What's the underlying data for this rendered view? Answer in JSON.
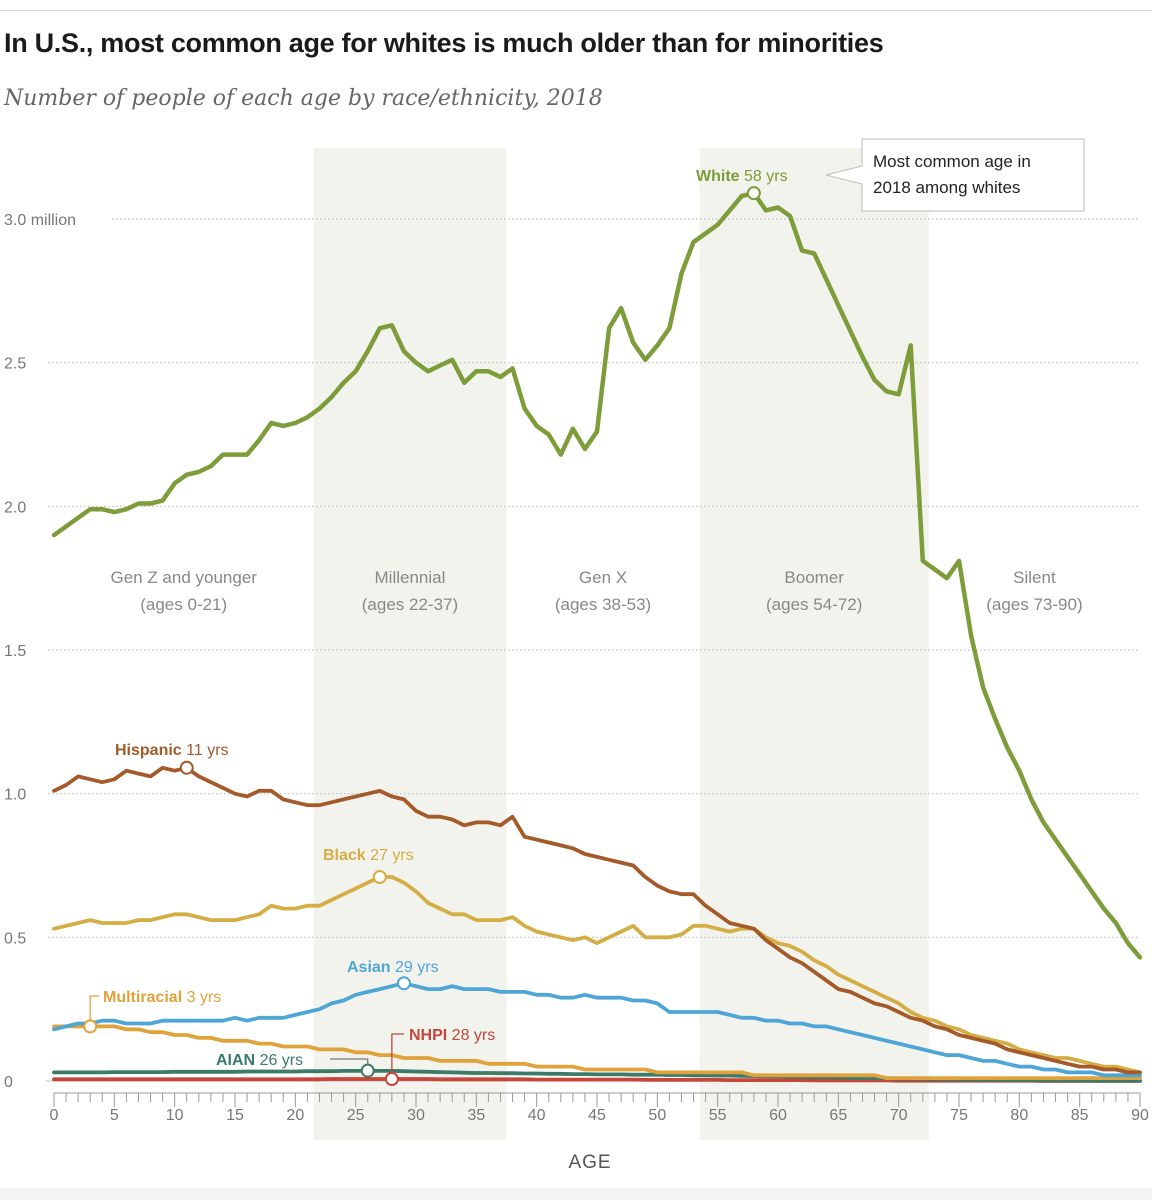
{
  "chart_data": {
    "type": "line",
    "title": "In U.S., most common age for whites is much older than for minorities",
    "subtitle": "Number of people of each age by race/ethnicity, 2018",
    "xlabel": "AGE",
    "ylabel": "",
    "xlim": [
      0,
      90
    ],
    "ylim": [
      0,
      3.2
    ],
    "grid": true,
    "x_ticks": [
      0,
      5,
      10,
      15,
      20,
      25,
      30,
      35,
      40,
      45,
      50,
      55,
      60,
      65,
      70,
      75,
      80,
      85,
      90
    ],
    "y_ticks": [
      {
        "value": 0,
        "label": "0"
      },
      {
        "value": 0.5,
        "label": "0.5"
      },
      {
        "value": 1.0,
        "label": "1.0"
      },
      {
        "value": 1.5,
        "label": "1.5"
      },
      {
        "value": 2.0,
        "label": "2.0"
      },
      {
        "value": 2.5,
        "label": "2.5"
      },
      {
        "value": 3.0,
        "label": "3.0 million"
      }
    ],
    "generations": [
      {
        "name": "Gen Z and younger",
        "range": "(ages 0-21)",
        "start": 0,
        "end": 21.5,
        "shaded": false
      },
      {
        "name": "Millennial",
        "range": "(ages 22-37)",
        "start": 21.5,
        "end": 37.5,
        "shaded": true
      },
      {
        "name": "Gen X",
        "range": "(ages 38-53)",
        "start": 37.5,
        "end": 53.5,
        "shaded": false
      },
      {
        "name": "Boomer",
        "range": "(ages 54-72)",
        "start": 53.5,
        "end": 72.5,
        "shaded": true
      },
      {
        "name": "Silent",
        "range": "(ages 73-90)",
        "start": 72.5,
        "end": 90,
        "shaded": false
      }
    ],
    "x": [
      0,
      1,
      2,
      3,
      4,
      5,
      6,
      7,
      8,
      9,
      10,
      11,
      12,
      13,
      14,
      15,
      16,
      17,
      18,
      19,
      20,
      21,
      22,
      23,
      24,
      25,
      26,
      27,
      28,
      29,
      30,
      31,
      32,
      33,
      34,
      35,
      36,
      37,
      38,
      39,
      40,
      41,
      42,
      43,
      44,
      45,
      46,
      47,
      48,
      49,
      50,
      51,
      52,
      53,
      54,
      55,
      56,
      57,
      58,
      59,
      60,
      61,
      62,
      63,
      64,
      65,
      66,
      67,
      68,
      69,
      70,
      71,
      72,
      73,
      74,
      75,
      76,
      77,
      78,
      79,
      80,
      81,
      82,
      83,
      84,
      85,
      86,
      87,
      88,
      89,
      90
    ],
    "series": [
      {
        "name": "White",
        "peak_label": "58 yrs",
        "peak_age": 58,
        "color": "#7d9c3a",
        "values": [
          1.9,
          1.93,
          1.96,
          1.99,
          1.99,
          1.98,
          1.99,
          2.01,
          2.01,
          2.02,
          2.08,
          2.11,
          2.12,
          2.14,
          2.18,
          2.18,
          2.18,
          2.23,
          2.29,
          2.28,
          2.29,
          2.31,
          2.34,
          2.38,
          2.43,
          2.47,
          2.54,
          2.62,
          2.63,
          2.54,
          2.5,
          2.47,
          2.49,
          2.51,
          2.43,
          2.47,
          2.47,
          2.45,
          2.48,
          2.34,
          2.28,
          2.25,
          2.18,
          2.27,
          2.2,
          2.26,
          2.62,
          2.69,
          2.57,
          2.51,
          2.56,
          2.62,
          2.81,
          2.92,
          2.95,
          2.98,
          3.03,
          3.08,
          3.09,
          3.03,
          3.04,
          3.01,
          2.89,
          2.88,
          2.79,
          2.7,
          2.61,
          2.52,
          2.44,
          2.4,
          2.39,
          2.56,
          1.81,
          1.78,
          1.75,
          1.81,
          1.55,
          1.37,
          1.26,
          1.16,
          1.08,
          0.98,
          0.9,
          0.84,
          0.78,
          0.72,
          0.66,
          0.6,
          0.55,
          0.48,
          0.43
        ]
      },
      {
        "name": "Hispanic",
        "peak_label": "11 yrs",
        "peak_age": 11,
        "color": "#a55a2a",
        "values": [
          1.01,
          1.03,
          1.06,
          1.05,
          1.04,
          1.05,
          1.08,
          1.07,
          1.06,
          1.09,
          1.08,
          1.09,
          1.06,
          1.04,
          1.02,
          1.0,
          0.99,
          1.01,
          1.01,
          0.98,
          0.97,
          0.96,
          0.96,
          0.97,
          0.98,
          0.99,
          1.0,
          1.01,
          0.99,
          0.98,
          0.94,
          0.92,
          0.92,
          0.91,
          0.89,
          0.9,
          0.9,
          0.89,
          0.92,
          0.85,
          0.84,
          0.83,
          0.82,
          0.81,
          0.79,
          0.78,
          0.77,
          0.76,
          0.75,
          0.71,
          0.68,
          0.66,
          0.65,
          0.65,
          0.61,
          0.58,
          0.55,
          0.54,
          0.53,
          0.49,
          0.46,
          0.43,
          0.41,
          0.38,
          0.35,
          0.32,
          0.31,
          0.29,
          0.27,
          0.26,
          0.24,
          0.22,
          0.21,
          0.19,
          0.18,
          0.16,
          0.15,
          0.14,
          0.13,
          0.11,
          0.1,
          0.09,
          0.08,
          0.07,
          0.06,
          0.05,
          0.05,
          0.04,
          0.04,
          0.03,
          0.03
        ]
      },
      {
        "name": "Black",
        "peak_label": "27 yrs",
        "peak_age": 27,
        "color": "#d4ae45",
        "values": [
          0.53,
          0.54,
          0.55,
          0.56,
          0.55,
          0.55,
          0.55,
          0.56,
          0.56,
          0.57,
          0.58,
          0.58,
          0.57,
          0.56,
          0.56,
          0.56,
          0.57,
          0.58,
          0.61,
          0.6,
          0.6,
          0.61,
          0.61,
          0.63,
          0.65,
          0.67,
          0.69,
          0.71,
          0.71,
          0.69,
          0.66,
          0.62,
          0.6,
          0.58,
          0.58,
          0.56,
          0.56,
          0.56,
          0.57,
          0.54,
          0.52,
          0.51,
          0.5,
          0.49,
          0.5,
          0.48,
          0.5,
          0.52,
          0.54,
          0.5,
          0.5,
          0.5,
          0.51,
          0.54,
          0.54,
          0.53,
          0.52,
          0.53,
          0.53,
          0.5,
          0.48,
          0.47,
          0.45,
          0.42,
          0.4,
          0.37,
          0.35,
          0.33,
          0.31,
          0.29,
          0.27,
          0.24,
          0.22,
          0.21,
          0.19,
          0.18,
          0.16,
          0.15,
          0.14,
          0.13,
          0.11,
          0.1,
          0.09,
          0.08,
          0.08,
          0.07,
          0.06,
          0.05,
          0.05,
          0.04,
          0.03
        ]
      },
      {
        "name": "Asian",
        "peak_label": "29 yrs",
        "peak_age": 29,
        "color": "#4ea6d6",
        "values": [
          0.18,
          0.19,
          0.2,
          0.2,
          0.21,
          0.21,
          0.2,
          0.2,
          0.2,
          0.21,
          0.21,
          0.21,
          0.21,
          0.21,
          0.21,
          0.22,
          0.21,
          0.22,
          0.22,
          0.22,
          0.23,
          0.24,
          0.25,
          0.27,
          0.28,
          0.3,
          0.31,
          0.32,
          0.33,
          0.34,
          0.33,
          0.32,
          0.32,
          0.33,
          0.32,
          0.32,
          0.32,
          0.31,
          0.31,
          0.31,
          0.3,
          0.3,
          0.29,
          0.29,
          0.3,
          0.29,
          0.29,
          0.29,
          0.28,
          0.28,
          0.27,
          0.24,
          0.24,
          0.24,
          0.24,
          0.24,
          0.23,
          0.22,
          0.22,
          0.21,
          0.21,
          0.2,
          0.2,
          0.19,
          0.19,
          0.18,
          0.17,
          0.16,
          0.15,
          0.14,
          0.13,
          0.12,
          0.11,
          0.1,
          0.09,
          0.09,
          0.08,
          0.07,
          0.07,
          0.06,
          0.05,
          0.05,
          0.04,
          0.04,
          0.03,
          0.03,
          0.03,
          0.02,
          0.02,
          0.02,
          0.02
        ]
      },
      {
        "name": "Multiracial",
        "peak_label": "3 yrs",
        "peak_age": 3,
        "color": "#e0a33c",
        "values": [
          0.19,
          0.19,
          0.19,
          0.19,
          0.19,
          0.19,
          0.18,
          0.18,
          0.17,
          0.17,
          0.16,
          0.16,
          0.15,
          0.15,
          0.14,
          0.14,
          0.14,
          0.13,
          0.13,
          0.12,
          0.12,
          0.12,
          0.11,
          0.11,
          0.11,
          0.1,
          0.1,
          0.09,
          0.09,
          0.08,
          0.08,
          0.08,
          0.07,
          0.07,
          0.07,
          0.07,
          0.06,
          0.06,
          0.06,
          0.06,
          0.05,
          0.05,
          0.05,
          0.05,
          0.04,
          0.04,
          0.04,
          0.04,
          0.04,
          0.04,
          0.03,
          0.03,
          0.03,
          0.03,
          0.03,
          0.03,
          0.03,
          0.03,
          0.02,
          0.02,
          0.02,
          0.02,
          0.02,
          0.02,
          0.02,
          0.02,
          0.02,
          0.02,
          0.02,
          0.01,
          0.01,
          0.01,
          0.01,
          0.01,
          0.01,
          0.01,
          0.01,
          0.01,
          0.01,
          0.01,
          0.01,
          0.01,
          0.01,
          0.01,
          0.01,
          0.01,
          0.01,
          0.01,
          0.01,
          0.01,
          0.01
        ]
      },
      {
        "name": "AIAN",
        "peak_label": "26 yrs",
        "peak_age": 26,
        "color": "#3c7a6a",
        "values": [
          0.03,
          0.03,
          0.03,
          0.03,
          0.03,
          0.031,
          0.031,
          0.031,
          0.031,
          0.031,
          0.032,
          0.032,
          0.032,
          0.032,
          0.032,
          0.032,
          0.033,
          0.033,
          0.033,
          0.033,
          0.033,
          0.034,
          0.034,
          0.034,
          0.035,
          0.035,
          0.036,
          0.035,
          0.035,
          0.034,
          0.033,
          0.032,
          0.031,
          0.03,
          0.029,
          0.028,
          0.028,
          0.027,
          0.027,
          0.026,
          0.026,
          0.025,
          0.025,
          0.024,
          0.024,
          0.023,
          0.023,
          0.023,
          0.022,
          0.022,
          0.022,
          0.021,
          0.021,
          0.02,
          0.02,
          0.019,
          0.019,
          0.018,
          0.017,
          0.016,
          0.016,
          0.015,
          0.014,
          0.013,
          0.013,
          0.012,
          0.011,
          0.01,
          0.01,
          0.009,
          0.008,
          0.008,
          0.007,
          0.006,
          0.006,
          0.005,
          0.005,
          0.004,
          0.004,
          0.003,
          0.003,
          0.003,
          0.002,
          0.002,
          0.002,
          0.002,
          0.001,
          0.001,
          0.001,
          0.001,
          0.001
        ]
      },
      {
        "name": "NHPI",
        "peak_label": "28 yrs",
        "peak_age": 28,
        "color": "#c8453a",
        "values": [
          0.006,
          0.006,
          0.006,
          0.006,
          0.006,
          0.006,
          0.006,
          0.006,
          0.006,
          0.006,
          0.006,
          0.006,
          0.006,
          0.006,
          0.006,
          0.006,
          0.006,
          0.006,
          0.006,
          0.006,
          0.006,
          0.006,
          0.006,
          0.007,
          0.007,
          0.007,
          0.007,
          0.007,
          0.007,
          0.007,
          0.007,
          0.007,
          0.006,
          0.006,
          0.006,
          0.006,
          0.006,
          0.006,
          0.006,
          0.006,
          0.005,
          0.005,
          0.005,
          0.005,
          0.005,
          0.005,
          0.005,
          0.005,
          0.005,
          0.004,
          0.004,
          0.004,
          0.004,
          0.004,
          0.004,
          0.004,
          0.003,
          0.003,
          0.003,
          0.003,
          0.003,
          0.003,
          0.003,
          0.002,
          0.002,
          0.002,
          0.002,
          0.002,
          0.002,
          0.002,
          0.001,
          0.001,
          0.001,
          0.001,
          0.001,
          0.001,
          0.001,
          0.001,
          0.001,
          0.001,
          0.001,
          0.001,
          0.0,
          0.0,
          0.0,
          0.0,
          0.0,
          0.0,
          0.0,
          0.0,
          0.0
        ]
      }
    ],
    "annotation": "Most common age in 2018 among whites"
  }
}
